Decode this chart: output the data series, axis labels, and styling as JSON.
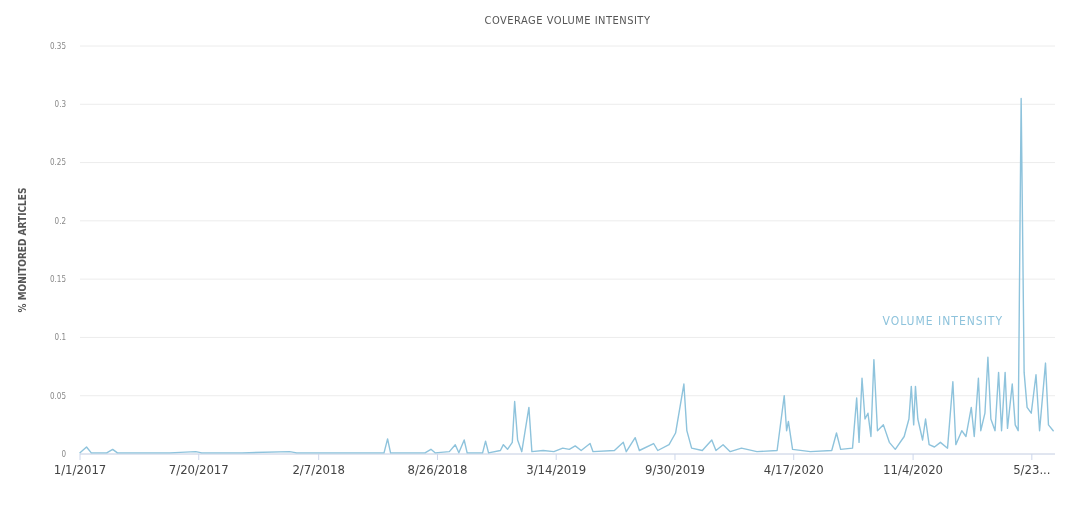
{
  "chart_data": {
    "type": "line",
    "title": "COVERAGE VOLUME INTENSITY",
    "ylabel": "% MONITORED ARTICLES",
    "xlim": [
      "2017-01-01",
      "2021-07-01"
    ],
    "ylim": [
      0,
      0.35
    ],
    "yticks": [
      0,
      0.05,
      0.1,
      0.15,
      0.2,
      0.25,
      0.3,
      0.35
    ],
    "xticks": [
      {
        "value": "2017-01-01",
        "label": "1/1/2017"
      },
      {
        "value": "2017-07-20",
        "label": "7/20/2017"
      },
      {
        "value": "2018-02-07",
        "label": "2/7/2018"
      },
      {
        "value": "2018-08-26",
        "label": "8/26/2018"
      },
      {
        "value": "2019-03-14",
        "label": "3/14/2019"
      },
      {
        "value": "2019-09-30",
        "label": "9/30/2019"
      },
      {
        "value": "2020-04-17",
        "label": "4/17/2020"
      },
      {
        "value": "2020-11-04",
        "label": "11/4/2020"
      },
      {
        "value": "2021-05-23",
        "label": "5/23..."
      }
    ],
    "grid": "y",
    "marker": "none",
    "line_style": "solid",
    "series": [
      {
        "name": "VOLUME INTENSITY",
        "color": "#8ec3dc",
        "x": [
          "2017-01-01",
          "2017-01-12",
          "2017-01-20",
          "2017-02-15",
          "2017-02-25",
          "2017-03-05",
          "2017-06-01",
          "2017-07-15",
          "2017-07-25",
          "2017-10-01",
          "2017-12-20",
          "2018-01-01",
          "2018-03-15",
          "2018-05-28",
          "2018-06-03",
          "2018-06-08",
          "2018-08-05",
          "2018-08-15",
          "2018-08-22",
          "2018-09-15",
          "2018-09-25",
          "2018-10-01",
          "2018-10-10",
          "2018-10-15",
          "2018-11-10",
          "2018-11-15",
          "2018-11-20",
          "2018-12-10",
          "2018-12-15",
          "2018-12-22",
          "2018-12-30",
          "2019-01-03",
          "2019-01-08",
          "2019-01-15",
          "2019-01-27",
          "2019-02-01",
          "2019-02-20",
          "2019-03-10",
          "2019-03-25",
          "2019-04-05",
          "2019-04-15",
          "2019-04-25",
          "2019-05-10",
          "2019-05-15",
          "2019-06-20",
          "2019-07-05",
          "2019-07-10",
          "2019-07-25",
          "2019-08-01",
          "2019-08-25",
          "2019-09-01",
          "2019-09-20",
          "2019-10-01",
          "2019-10-15",
          "2019-10-20",
          "2019-10-28",
          "2019-11-15",
          "2019-12-01",
          "2019-12-08",
          "2019-12-20",
          "2020-01-01",
          "2020-01-20",
          "2020-02-15",
          "2020-03-20",
          "2020-04-01",
          "2020-04-05",
          "2020-04-08",
          "2020-04-15",
          "2020-05-15",
          "2020-06-20",
          "2020-06-28",
          "2020-07-05",
          "2020-07-25",
          "2020-08-01",
          "2020-08-05",
          "2020-08-10",
          "2020-08-15",
          "2020-08-20",
          "2020-08-25",
          "2020-08-30",
          "2020-09-05",
          "2020-09-15",
          "2020-09-25",
          "2020-10-05",
          "2020-10-20",
          "2020-10-28",
          "2020-11-01",
          "2020-11-05",
          "2020-11-08",
          "2020-11-12",
          "2020-11-20",
          "2020-11-25",
          "2020-12-01",
          "2020-12-10",
          "2020-12-20",
          "2021-01-01",
          "2021-01-10",
          "2021-01-15",
          "2021-01-25",
          "2021-02-01",
          "2021-02-10",
          "2021-02-15",
          "2021-02-22",
          "2021-02-26",
          "2021-03-05",
          "2021-03-10",
          "2021-03-15",
          "2021-03-22",
          "2021-03-28",
          "2021-04-02",
          "2021-04-08",
          "2021-04-12",
          "2021-04-20",
          "2021-04-25",
          "2021-04-30",
          "2021-05-05",
          "2021-05-10",
          "2021-05-15",
          "2021-05-22",
          "2021-05-30",
          "2021-06-05",
          "2021-06-15",
          "2021-06-20",
          "2021-06-28"
        ],
        "values": [
          0.001,
          0.006,
          0.001,
          0.001,
          0.004,
          0.001,
          0.001,
          0.002,
          0.001,
          0.001,
          0.002,
          0.001,
          0.001,
          0.001,
          0.013,
          0.001,
          0.001,
          0.004,
          0.001,
          0.002,
          0.008,
          0.001,
          0.012,
          0.001,
          0.001,
          0.011,
          0.001,
          0.003,
          0.008,
          0.004,
          0.01,
          0.045,
          0.012,
          0.002,
          0.04,
          0.002,
          0.003,
          0.002,
          0.005,
          0.004,
          0.007,
          0.003,
          0.009,
          0.002,
          0.003,
          0.01,
          0.002,
          0.014,
          0.003,
          0.009,
          0.003,
          0.008,
          0.018,
          0.06,
          0.02,
          0.005,
          0.003,
          0.012,
          0.003,
          0.008,
          0.002,
          0.005,
          0.002,
          0.003,
          0.05,
          0.02,
          0.028,
          0.004,
          0.002,
          0.003,
          0.018,
          0.004,
          0.005,
          0.048,
          0.01,
          0.065,
          0.03,
          0.035,
          0.015,
          0.081,
          0.02,
          0.025,
          0.01,
          0.004,
          0.015,
          0.03,
          0.058,
          0.025,
          0.058,
          0.03,
          0.012,
          0.03,
          0.008,
          0.006,
          0.01,
          0.005,
          0.062,
          0.008,
          0.02,
          0.015,
          0.04,
          0.015,
          0.065,
          0.02,
          0.035,
          0.083,
          0.03,
          0.02,
          0.07,
          0.02,
          0.07,
          0.022,
          0.06,
          0.025,
          0.02,
          0.305,
          0.07,
          0.04,
          0.035,
          0.068,
          0.02,
          0.078,
          0.025,
          0.02
        ]
      }
    ]
  }
}
